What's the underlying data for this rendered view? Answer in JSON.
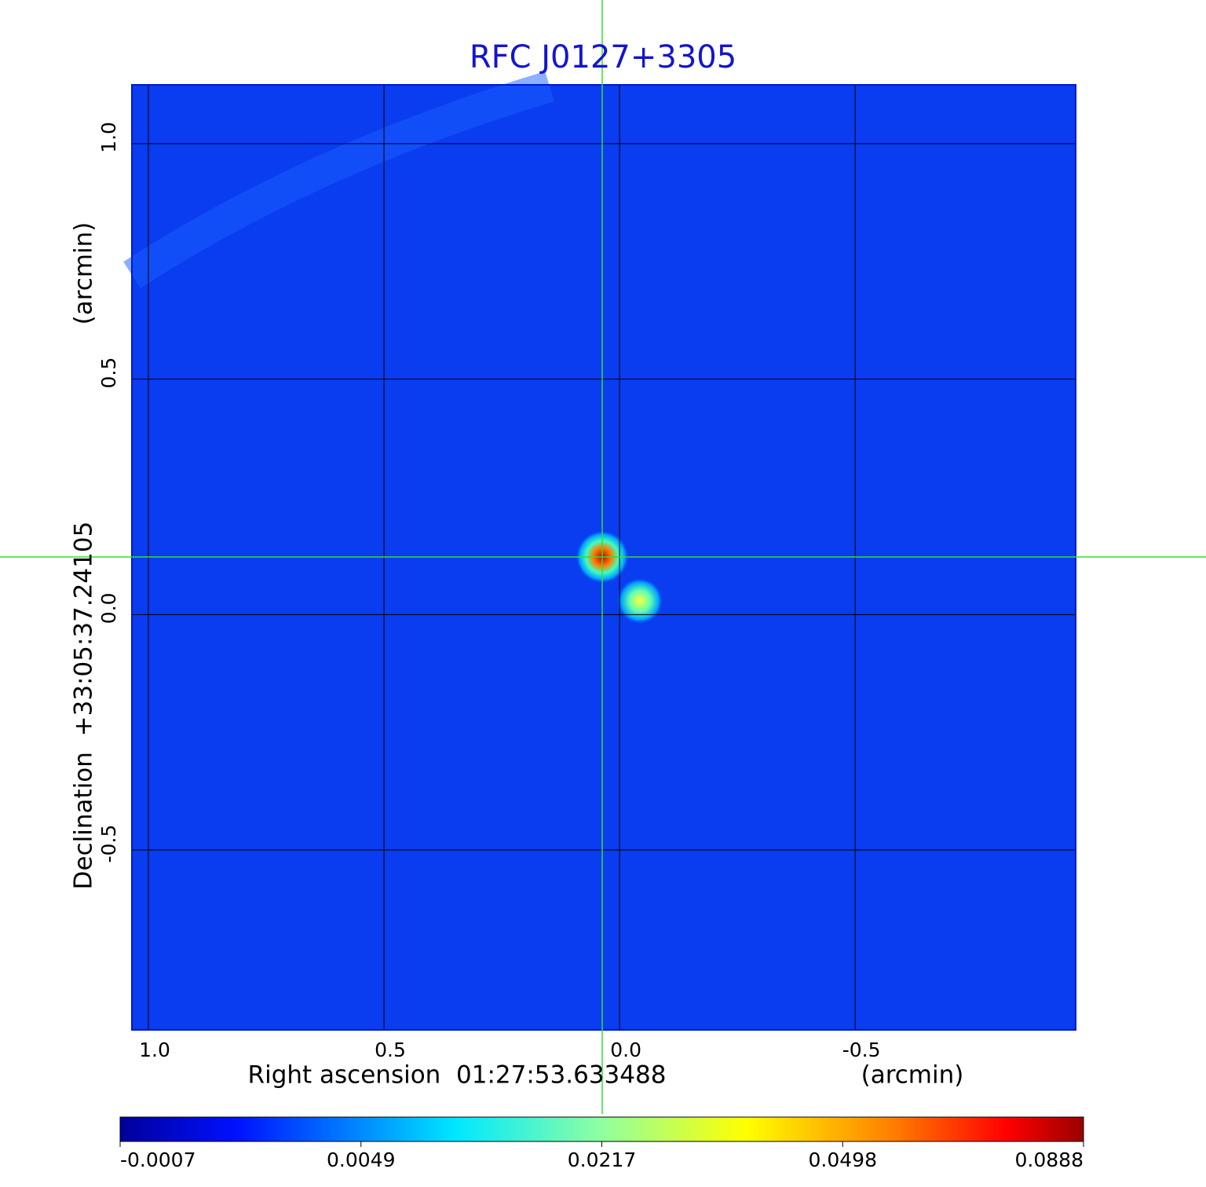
{
  "chart_data": {
    "type": "image",
    "title": "RFC J0127+3305",
    "x_label": "Right ascension  01:27:53.633488",
    "x_unit": "(arcmin)",
    "y_label": "Declination  +33:05:37.24105",
    "y_unit": "(arcmin)",
    "xlim": [
      1.035,
      -0.968
    ],
    "ylim": [
      -0.882,
      1.125
    ],
    "xticks": [
      {
        "value": 1,
        "label": "1.0"
      },
      {
        "value": 0.5,
        "label": "0.5"
      },
      {
        "value": 0,
        "label": "0.0"
      },
      {
        "value": -0.5,
        "label": "-0.5"
      }
    ],
    "yticks": [
      {
        "value": 1,
        "label": "1.0"
      },
      {
        "value": 0.5,
        "label": "0.5"
      },
      {
        "value": 0,
        "label": "0.0"
      },
      {
        "value": -0.5,
        "label": "-0.5"
      }
    ],
    "grid": true,
    "colorbar_ticks": [
      -0.0007,
      0.0049,
      0.0217,
      0.0498,
      0.0888
    ]
  }
}
